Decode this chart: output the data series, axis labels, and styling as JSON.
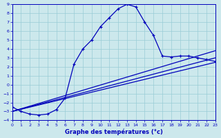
{
  "xlabel": "Graphe des températures (°c)",
  "bg_color": "#cce8ec",
  "line_color": "#0000bb",
  "grid_color": "#99ccd6",
  "xlim": [
    0,
    23
  ],
  "ylim": [
    -4,
    9
  ],
  "yticks": [
    -4,
    -3,
    -2,
    -1,
    0,
    1,
    2,
    3,
    4,
    5,
    6,
    7,
    8,
    9
  ],
  "xticks": [
    0,
    1,
    2,
    3,
    4,
    5,
    6,
    7,
    8,
    9,
    10,
    11,
    12,
    13,
    14,
    15,
    16,
    17,
    18,
    19,
    20,
    21,
    22,
    23
  ],
  "curve_main_x": [
    0,
    1,
    2,
    3,
    4,
    5,
    6,
    7,
    8,
    9,
    10,
    11,
    12,
    13,
    14,
    15,
    16,
    17,
    18,
    19,
    20,
    21,
    22,
    23
  ],
  "curve_main_y": [
    -2.5,
    -3.0,
    -3.3,
    -3.4,
    -3.3,
    -2.8,
    -1.5,
    2.3,
    4.0,
    5.0,
    6.5,
    7.5,
    8.5,
    9.0,
    8.7,
    7.0,
    5.5,
    3.2,
    3.1,
    3.2,
    3.2,
    3.0,
    2.8,
    2.6
  ],
  "curve_line1_x": [
    0,
    23
  ],
  "curve_line1_y": [
    -3.0,
    2.5
  ],
  "curve_line2_x": [
    0,
    23
  ],
  "curve_line2_y": [
    -3.0,
    3.0
  ],
  "curve_line3_x": [
    0,
    23
  ],
  "curve_line3_y": [
    -3.0,
    3.8
  ],
  "marker_pts_x": [
    1,
    2,
    3,
    4,
    5,
    6,
    7,
    20,
    21,
    22,
    23
  ],
  "marker_pts_y": [
    -3.0,
    -3.3,
    -3.4,
    -3.3,
    -2.8,
    -1.5,
    2.3,
    3.2,
    3.0,
    2.8,
    2.6
  ]
}
